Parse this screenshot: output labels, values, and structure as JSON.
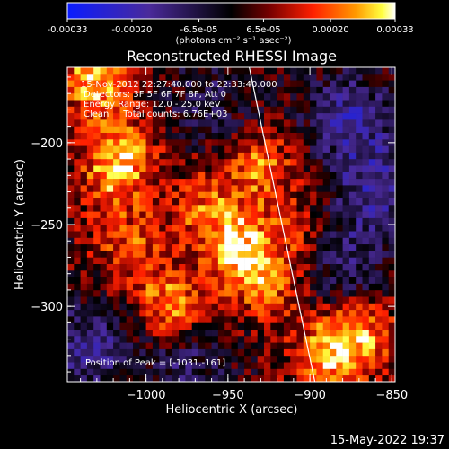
{
  "colorbar": {
    "tick_labels": [
      "-0.00033",
      "-0.00020",
      "-6.5e-05",
      "6.5e-05",
      "0.00020",
      "0.00033"
    ],
    "tick_values": [
      -0.00033,
      -0.0002,
      -6.5e-05,
      6.5e-05,
      0.0002,
      0.00033
    ],
    "range": [
      -0.00033,
      0.00033
    ],
    "units_label": "(photons cm⁻² s⁻¹ asec⁻²)"
  },
  "chart_data": {
    "type": "heatmap",
    "title": "Reconstructed RHESSI Image",
    "xlabel": "Heliocentric X (arcsec)",
    "ylabel": "Heliocentric Y (arcsec)",
    "xlim": [
      -1048,
      -848
    ],
    "ylim": [
      -346,
      -154
    ],
    "x_ticks": [
      -1000,
      -950,
      -900,
      -850
    ],
    "x_tick_labels": [
      "−1000",
      "−950",
      "−900",
      "−850"
    ],
    "y_ticks": [
      -200,
      -250,
      -300
    ],
    "y_tick_labels": [
      "−200",
      "−250",
      "−300"
    ],
    "colormap": "rhessi-blue-black-red-yellow-white",
    "hotspots": [
      {
        "x": -942,
        "y": -265,
        "strength": 0.95
      },
      {
        "x": -985,
        "y": -300,
        "strength": 0.85
      },
      {
        "x": -1031,
        "y": -161,
        "strength": 1.0
      },
      {
        "x": -1015,
        "y": -205,
        "strength": 0.7
      },
      {
        "x": -930,
        "y": -215,
        "strength": 0.75
      },
      {
        "x": -888,
        "y": -330,
        "strength": 0.85
      },
      {
        "x": -870,
        "y": -315,
        "strength": 0.75
      },
      {
        "x": -1010,
        "y": -265,
        "strength": 0.55
      },
      {
        "x": -965,
        "y": -240,
        "strength": 0.6
      },
      {
        "x": -925,
        "y": -290,
        "strength": 0.6
      },
      {
        "x": -1020,
        "y": -225,
        "strength": 0.55
      },
      {
        "x": -905,
        "y": -255,
        "strength": 0.45
      }
    ],
    "coldspots": [
      {
        "x": -875,
        "y": -185,
        "strength": 0.9
      },
      {
        "x": -1035,
        "y": -325,
        "strength": 0.8
      },
      {
        "x": -880,
        "y": -275,
        "strength": 0.7
      },
      {
        "x": -960,
        "y": -175,
        "strength": 0.5
      },
      {
        "x": -860,
        "y": -230,
        "strength": 0.8
      },
      {
        "x": -975,
        "y": -335,
        "strength": 0.6
      }
    ],
    "limb_line": {
      "x1": -937,
      "y1": -154,
      "x2": -897,
      "y2": -346
    },
    "annotations": [
      "15-Nov-2012 22:27:40.000 to 22:33:40.000",
      "Detectors: 3F 5F 6F 7F 8F, Att 0",
      "Energy Range: 12.0 - 25.0 keV",
      "Clean     Total counts: 6.76E+03"
    ],
    "peak_label": "Position of Peak = [-1031,-161]"
  },
  "footer": {
    "timestamp": "15-May-2022 19:37"
  }
}
